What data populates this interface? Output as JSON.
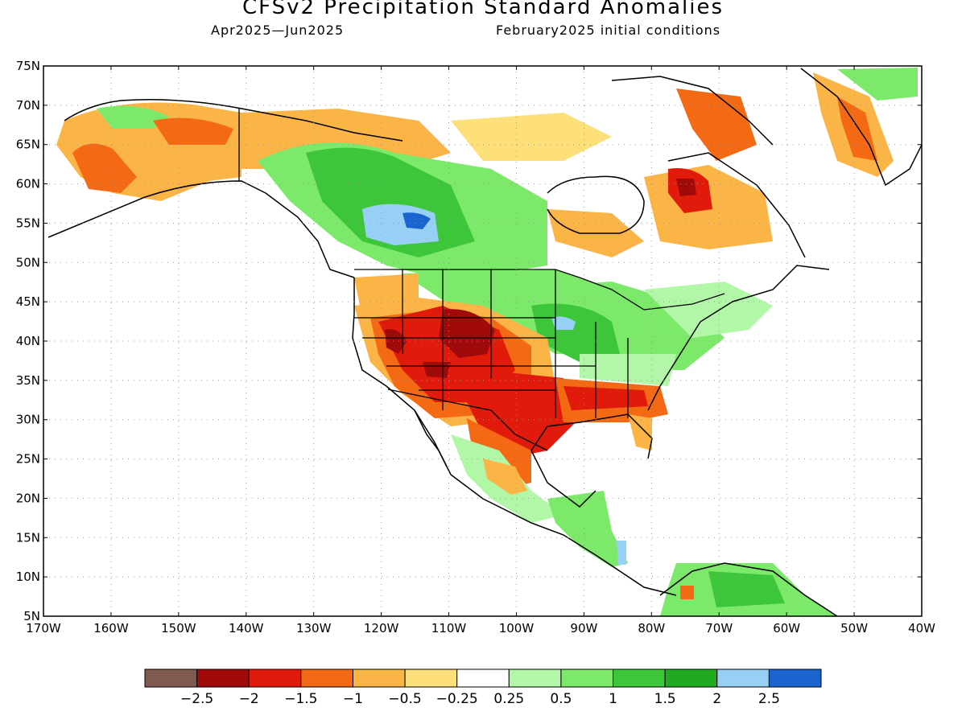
{
  "header": {
    "title": "CFSv2 Precipitation Standard Anomalies",
    "period": "Apr2025—Jun2025",
    "init": "February2025 initial conditions"
  },
  "map": {
    "lon_range": [
      -170,
      -40
    ],
    "lat_range": [
      5,
      75
    ],
    "lat_ticks": [
      "75N",
      "70N",
      "65N",
      "60N",
      "55N",
      "50N",
      "45N",
      "40N",
      "35N",
      "30N",
      "25N",
      "20N",
      "15N",
      "10N",
      "5N"
    ],
    "lon_ticks": [
      "170W",
      "160W",
      "150W",
      "140W",
      "130W",
      "120W",
      "110W",
      "100W",
      "90W",
      "80W",
      "70W",
      "60W",
      "50W",
      "40W"
    ],
    "grid": "dotted",
    "anomaly_regions": [
      {
        "region": "Alaska west coast",
        "category": "-1.5"
      },
      {
        "region": "Alaska interior",
        "category": "-0.5"
      },
      {
        "region": "Western Canada / Alberta",
        "category": "1.5"
      },
      {
        "region": "Central Alberta core",
        "category": "2.5"
      },
      {
        "region": "Southwest US (NV, UT, AZ, NM)",
        "category": "-2"
      },
      {
        "region": "Texas / Southern Plains",
        "category": "-1.5"
      },
      {
        "region": "Gulf Coast states",
        "category": "-1"
      },
      {
        "region": "Midwest / Great Lakes",
        "category": "1"
      },
      {
        "region": "Iowa / Wisconsin core",
        "category": "2"
      },
      {
        "region": "Northern Quebec",
        "category": "-1.5"
      },
      {
        "region": "Baffin Island",
        "category": "-1"
      },
      {
        "region": "Greenland west coast",
        "category": "-1.5"
      },
      {
        "region": "Central America",
        "category": "1"
      },
      {
        "region": "Northern South America",
        "category": "1.5"
      }
    ]
  },
  "legend": {
    "colors": [
      "#7f5a4f",
      "#a10a0a",
      "#e01b0c",
      "#f46a14",
      "#fbb446",
      "#fde07a",
      "#ffffff",
      "#b2f7a8",
      "#7ce96a",
      "#3ec63a",
      "#20aa20",
      "#97cff5",
      "#1a64d0"
    ],
    "labels": [
      "−2.5",
      "−2",
      "−1.5",
      "−1",
      "−0.5",
      "−0.25",
      "0.25",
      "0.5",
      "1",
      "1.5",
      "2",
      "2.5"
    ]
  }
}
